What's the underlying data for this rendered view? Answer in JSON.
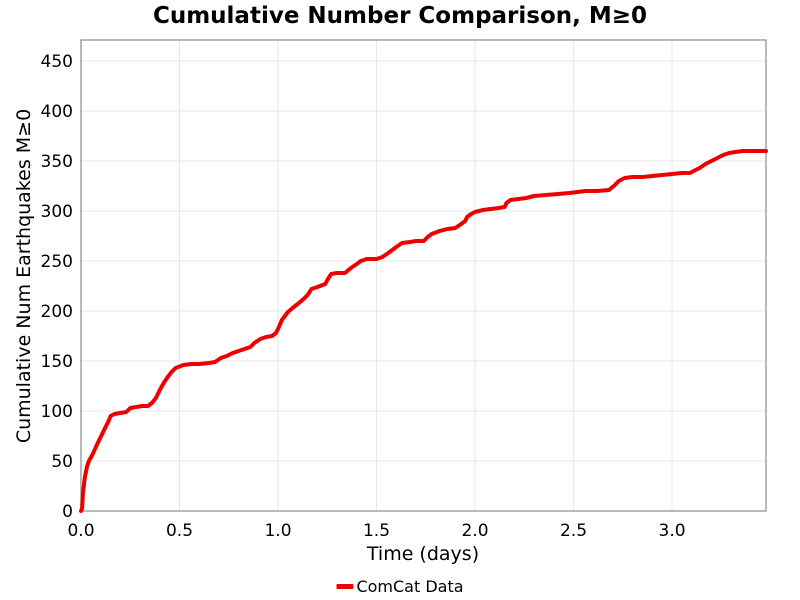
{
  "title": "Cumulative Number Comparison, M≥0",
  "chart_data": {
    "type": "line",
    "title": "Cumulative Number Comparison, M≥0",
    "xlabel": "Time (days)",
    "ylabel": "Cumulative Num Earthquakes M≥0",
    "xlim": [
      0,
      3.477
    ],
    "ylim": [
      0,
      471
    ],
    "grid": true,
    "grid_color": "#e7e7e7",
    "frame_color": "#8a8a8a",
    "text_color": "#000000",
    "background_color": "#ffffff",
    "x_ticks": {
      "values": [
        0.0,
        0.5,
        1.0,
        1.5,
        2.0,
        2.5,
        3.0
      ],
      "labels": [
        "0.0",
        "0.5",
        "1.0",
        "1.5",
        "2.0",
        "2.5",
        "3.0"
      ]
    },
    "y_ticks": {
      "values": [
        0,
        50,
        100,
        150,
        200,
        250,
        300,
        350,
        400,
        450
      ],
      "labels": [
        "0",
        "50",
        "100",
        "150",
        "200",
        "250",
        "300",
        "350",
        "400",
        "450"
      ]
    },
    "legend": {
      "position": "bottom-center",
      "entries": [
        {
          "label": "ComCat Data",
          "color": "#ee0000"
        }
      ]
    },
    "series": [
      {
        "name": "ComCat Data",
        "color": "#ee0000",
        "line_width": 4,
        "x": [
          0,
          0.005,
          0.01,
          0.02,
          0.03,
          0.04,
          0.06,
          0.08,
          0.1,
          0.12,
          0.14,
          0.15,
          0.17,
          0.2,
          0.23,
          0.25,
          0.28,
          0.31,
          0.34,
          0.36,
          0.38,
          0.4,
          0.42,
          0.44,
          0.46,
          0.48,
          0.52,
          0.56,
          0.6,
          0.65,
          0.68,
          0.71,
          0.74,
          0.77,
          0.8,
          0.83,
          0.86,
          0.88,
          0.91,
          0.94,
          0.97,
          0.99,
          1.0,
          1.02,
          1.05,
          1.08,
          1.1,
          1.13,
          1.15,
          1.17,
          1.2,
          1.24,
          1.25,
          1.27,
          1.3,
          1.34,
          1.37,
          1.4,
          1.42,
          1.45,
          1.5,
          1.53,
          1.56,
          1.6,
          1.63,
          1.67,
          1.7,
          1.74,
          1.76,
          1.78,
          1.82,
          1.86,
          1.9,
          1.93,
          1.95,
          1.96,
          1.98,
          2.0,
          2.04,
          2.08,
          2.12,
          2.15,
          2.16,
          2.18,
          2.22,
          2.26,
          2.3,
          2.36,
          2.42,
          2.48,
          2.52,
          2.56,
          2.62,
          2.68,
          2.71,
          2.73,
          2.76,
          2.8,
          2.85,
          2.9,
          2.95,
          3.0,
          3.05,
          3.09,
          3.11,
          3.14,
          3.17,
          3.2,
          3.23,
          3.26,
          3.29,
          3.32,
          3.36,
          3.4,
          3.44,
          3.477
        ],
        "y": [
          0,
          2,
          18,
          34,
          44,
          50,
          57,
          66,
          74,
          82,
          90,
          95,
          97,
          98,
          99,
          103,
          104,
          105,
          105,
          108,
          113,
          121,
          128,
          134,
          139,
          143,
          146,
          147,
          147,
          148,
          149,
          153,
          155,
          158,
          160,
          162,
          164,
          168,
          172,
          174,
          175,
          178,
          182,
          191,
          199,
          204,
          207,
          212,
          216,
          222,
          224,
          227,
          231,
          237,
          238,
          238,
          243,
          247,
          250,
          252,
          252,
          254,
          258,
          264,
          268,
          269,
          270,
          270,
          274,
          277,
          280,
          282,
          283,
          287,
          290,
          294,
          297,
          299,
          301,
          302,
          303,
          304,
          308,
          311,
          312,
          313,
          315,
          316,
          317,
          318,
          319,
          320,
          320,
          321,
          326,
          330,
          333,
          334,
          334,
          335,
          336,
          337,
          338,
          338,
          340,
          343,
          347,
          350,
          353,
          356,
          358,
          359,
          360,
          360,
          360,
          360
        ]
      }
    ]
  }
}
